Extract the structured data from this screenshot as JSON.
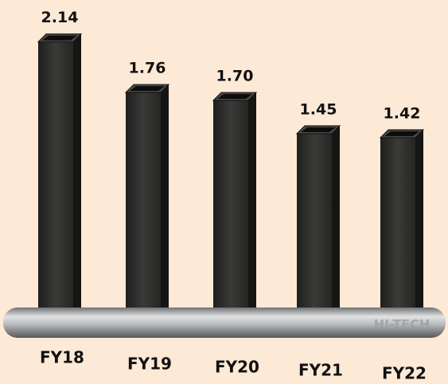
{
  "chart_data": {
    "type": "bar",
    "categories": [
      "FY18",
      "FY19",
      "FY20",
      "FY21",
      "FY22"
    ],
    "values": [
      2.14,
      1.76,
      1.7,
      1.45,
      1.42
    ],
    "value_labels": [
      "2.14",
      "1.76",
      "1.70",
      "1.45",
      "1.42"
    ],
    "color": "#2b2b2a",
    "watermark": "HI-TECH"
  }
}
